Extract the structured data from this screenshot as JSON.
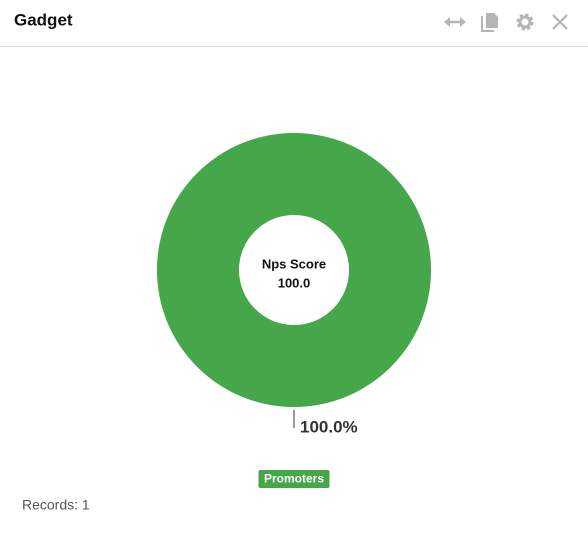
{
  "header": {
    "title": "Gadget"
  },
  "chart_data": {
    "type": "pie",
    "donut": true,
    "center_title": "Nps Score",
    "center_value": "100.0",
    "categories": [
      "Promoters"
    ],
    "values": [
      100
    ],
    "value_labels": [
      "100.0%"
    ],
    "colors": [
      "#46a64a"
    ]
  },
  "footer": {
    "records": "Records: 1"
  }
}
